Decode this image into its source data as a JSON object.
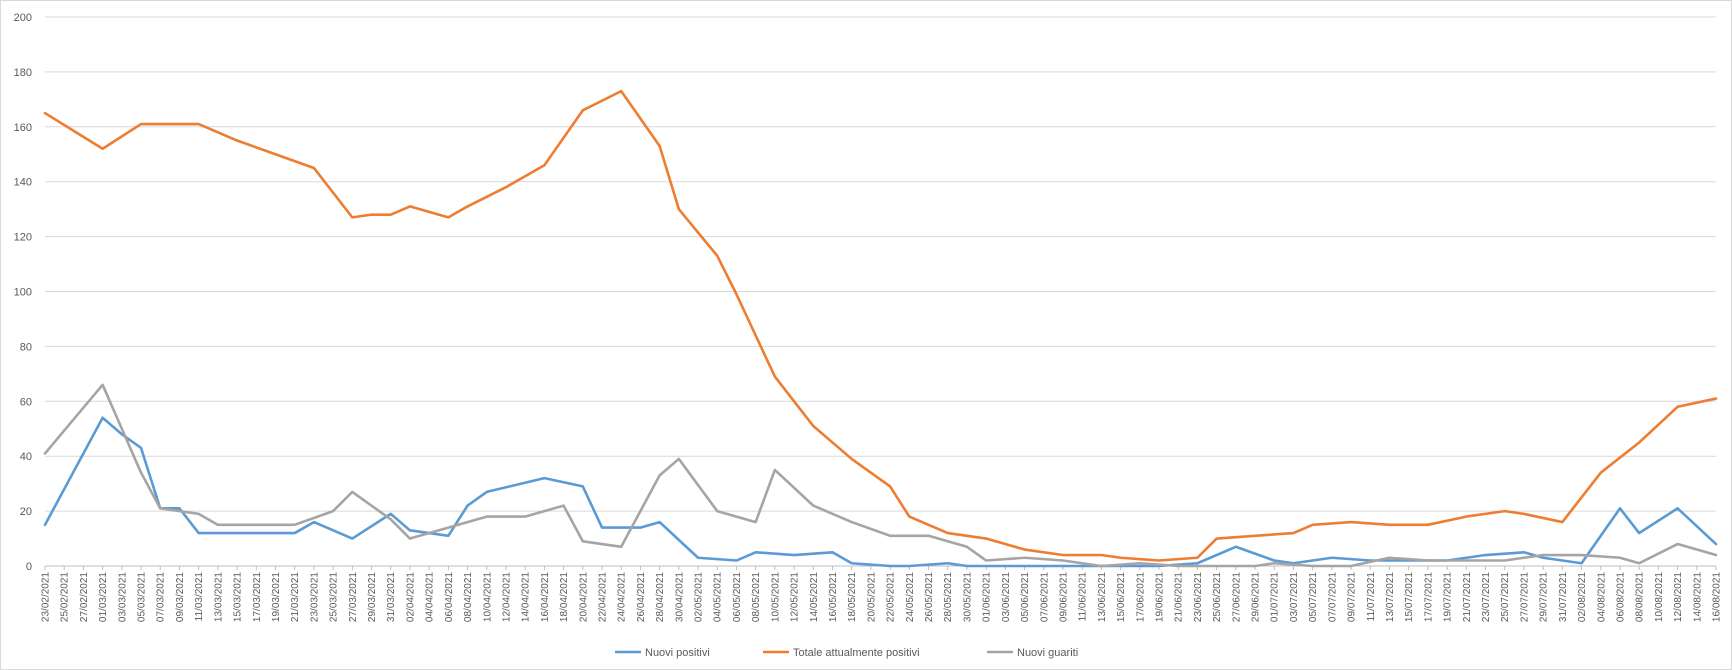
{
  "chart_data": {
    "type": "line",
    "title": "",
    "xlabel": "",
    "ylabel": "",
    "ylim": [
      0,
      200
    ],
    "yticks": [
      0,
      20,
      40,
      60,
      80,
      100,
      120,
      140,
      160,
      180,
      200
    ],
    "grid": true,
    "legend": "bottom",
    "x": [
      "23/02/2021",
      "25/02/2021",
      "27/02/2021",
      "01/03/2021",
      "03/03/2021",
      "05/03/2021",
      "07/03/2021",
      "09/03/2021",
      "11/03/2021",
      "13/03/2021",
      "15/03/2021",
      "17/03/2021",
      "19/03/2021",
      "21/03/2021",
      "23/03/2021",
      "25/03/2021",
      "27/03/2021",
      "29/03/2021",
      "31/03/2021",
      "02/04/2021",
      "04/04/2021",
      "06/04/2021",
      "08/04/2021",
      "10/04/2021",
      "12/04/2021",
      "14/04/2021",
      "16/04/2021",
      "18/04/2021",
      "20/04/2021",
      "22/04/2021",
      "24/04/2021",
      "26/04/2021",
      "28/04/2021",
      "30/04/2021",
      "02/05/2021",
      "04/05/2021",
      "06/05/2021",
      "08/05/2021",
      "10/05/2021",
      "12/05/2021",
      "14/05/2021",
      "16/05/2021",
      "18/05/2021",
      "20/05/2021",
      "22/05/2021",
      "24/05/2021",
      "26/05/2021",
      "28/05/2021",
      "30/05/2021",
      "01/06/2021",
      "03/06/2021",
      "05/06/2021",
      "07/06/2021",
      "09/06/2021",
      "11/06/2021",
      "13/06/2021",
      "15/06/2021",
      "17/06/2021",
      "19/06/2021",
      "21/06/2021",
      "23/06/2021",
      "25/06/2021",
      "27/06/2021",
      "29/06/2021",
      "01/07/2021",
      "03/07/2021",
      "05/07/2021",
      "07/07/2021",
      "09/07/2021",
      "11/07/2021",
      "13/07/2021",
      "15/07/2021",
      "17/07/2021",
      "19/07/2021",
      "21/07/2021",
      "23/07/2021",
      "25/07/2021",
      "27/07/2021",
      "29/07/2021",
      "31/07/2021",
      "02/08/2021",
      "04/08/2021",
      "06/08/2021",
      "08/08/2021",
      "10/08/2021",
      "12/08/2021",
      "14/08/2021",
      "16/08/2021"
    ],
    "series": [
      {
        "name": "Nuovi positivi",
        "color": "#5b9bd5",
        "points": [
          {
            "x": "23/02/2021",
            "y": 15
          },
          {
            "x": "01/03/2021",
            "y": 54
          },
          {
            "x": "03/03/2021",
            "y": 48
          },
          {
            "x": "05/03/2021",
            "y": 43
          },
          {
            "x": "07/03/2021",
            "y": 21
          },
          {
            "x": "09/03/2021",
            "y": 21
          },
          {
            "x": "11/03/2021",
            "y": 12
          },
          {
            "x": "13/03/2021",
            "y": 12
          },
          {
            "x": "15/03/2021",
            "y": 12
          },
          {
            "x": "21/03/2021",
            "y": 12
          },
          {
            "x": "23/03/2021",
            "y": 16
          },
          {
            "x": "27/03/2021",
            "y": 10
          },
          {
            "x": "31/03/2021",
            "y": 19
          },
          {
            "x": "02/04/2021",
            "y": 13
          },
          {
            "x": "06/04/2021",
            "y": 11
          },
          {
            "x": "08/04/2021",
            "y": 22
          },
          {
            "x": "10/04/2021",
            "y": 27
          },
          {
            "x": "16/04/2021",
            "y": 32
          },
          {
            "x": "20/04/2021",
            "y": 29
          },
          {
            "x": "22/04/2021",
            "y": 14
          },
          {
            "x": "26/04/2021",
            "y": 14
          },
          {
            "x": "28/04/2021",
            "y": 16
          },
          {
            "x": "02/05/2021",
            "y": 3
          },
          {
            "x": "06/05/2021",
            "y": 2
          },
          {
            "x": "08/05/2021",
            "y": 5
          },
          {
            "x": "12/05/2021",
            "y": 4
          },
          {
            "x": "16/05/2021",
            "y": 5
          },
          {
            "x": "18/05/2021",
            "y": 1
          },
          {
            "x": "22/05/2021",
            "y": 0
          },
          {
            "x": "24/05/2021",
            "y": 0
          },
          {
            "x": "28/05/2021",
            "y": 1
          },
          {
            "x": "30/05/2021",
            "y": 0
          },
          {
            "x": "05/06/2021",
            "y": 0
          },
          {
            "x": "09/06/2021",
            "y": 0
          },
          {
            "x": "11/06/2021",
            "y": 0
          },
          {
            "x": "15/06/2021",
            "y": 0
          },
          {
            "x": "19/06/2021",
            "y": 0
          },
          {
            "x": "23/06/2021",
            "y": 1
          },
          {
            "x": "27/06/2021",
            "y": 7
          },
          {
            "x": "01/07/2021",
            "y": 2
          },
          {
            "x": "03/07/2021",
            "y": 1
          },
          {
            "x": "07/07/2021",
            "y": 3
          },
          {
            "x": "11/07/2021",
            "y": 2
          },
          {
            "x": "15/07/2021",
            "y": 2
          },
          {
            "x": "17/07/2021",
            "y": 2
          },
          {
            "x": "19/07/2021",
            "y": 2
          },
          {
            "x": "23/07/2021",
            "y": 4
          },
          {
            "x": "27/07/2021",
            "y": 5
          },
          {
            "x": "29/07/2021",
            "y": 3
          },
          {
            "x": "02/08/2021",
            "y": 1
          },
          {
            "x": "06/08/2021",
            "y": 21
          },
          {
            "x": "08/08/2021",
            "y": 12
          },
          {
            "x": "12/08/2021",
            "y": 21
          },
          {
            "x": "16/08/2021",
            "y": 8
          }
        ]
      },
      {
        "name": "Totale attualmente positivi",
        "color": "#ed7d31",
        "points": [
          {
            "x": "23/02/2021",
            "y": 165
          },
          {
            "x": "01/03/2021",
            "y": 152
          },
          {
            "x": "05/03/2021",
            "y": 161
          },
          {
            "x": "09/03/2021",
            "y": 161
          },
          {
            "x": "11/03/2021",
            "y": 161
          },
          {
            "x": "13/03/2021",
            "y": 158
          },
          {
            "x": "15/03/2021",
            "y": 155
          },
          {
            "x": "19/03/2021",
            "y": 150
          },
          {
            "x": "23/03/2021",
            "y": 145
          },
          {
            "x": "27/03/2021",
            "y": 127
          },
          {
            "x": "29/03/2021",
            "y": 128
          },
          {
            "x": "31/03/2021",
            "y": 128
          },
          {
            "x": "02/04/2021",
            "y": 131
          },
          {
            "x": "06/04/2021",
            "y": 127
          },
          {
            "x": "08/04/2021",
            "y": 131
          },
          {
            "x": "12/04/2021",
            "y": 138
          },
          {
            "x": "16/04/2021",
            "y": 146
          },
          {
            "x": "20/04/2021",
            "y": 166
          },
          {
            "x": "24/04/2021",
            "y": 173
          },
          {
            "x": "28/04/2021",
            "y": 153
          },
          {
            "x": "30/04/2021",
            "y": 130
          },
          {
            "x": "04/05/2021",
            "y": 113
          },
          {
            "x": "06/05/2021",
            "y": 99
          },
          {
            "x": "10/05/2021",
            "y": 69
          },
          {
            "x": "12/05/2021",
            "y": 60
          },
          {
            "x": "14/05/2021",
            "y": 51
          },
          {
            "x": "18/05/2021",
            "y": 39
          },
          {
            "x": "22/05/2021",
            "y": 29
          },
          {
            "x": "24/05/2021",
            "y": 18
          },
          {
            "x": "28/05/2021",
            "y": 12
          },
          {
            "x": "01/06/2021",
            "y": 10
          },
          {
            "x": "05/06/2021",
            "y": 6
          },
          {
            "x": "09/06/2021",
            "y": 4
          },
          {
            "x": "13/06/2021",
            "y": 4
          },
          {
            "x": "15/06/2021",
            "y": 3
          },
          {
            "x": "19/06/2021",
            "y": 2
          },
          {
            "x": "23/06/2021",
            "y": 3
          },
          {
            "x": "25/06/2021",
            "y": 10
          },
          {
            "x": "29/06/2021",
            "y": 11
          },
          {
            "x": "03/07/2021",
            "y": 12
          },
          {
            "x": "05/07/2021",
            "y": 15
          },
          {
            "x": "09/07/2021",
            "y": 16
          },
          {
            "x": "13/07/2021",
            "y": 15
          },
          {
            "x": "17/07/2021",
            "y": 15
          },
          {
            "x": "21/07/2021",
            "y": 18
          },
          {
            "x": "25/07/2021",
            "y": 20
          },
          {
            "x": "27/07/2021",
            "y": 19
          },
          {
            "x": "31/07/2021",
            "y": 16
          },
          {
            "x": "04/08/2021",
            "y": 34
          },
          {
            "x": "08/08/2021",
            "y": 45
          },
          {
            "x": "12/08/2021",
            "y": 58
          },
          {
            "x": "16/08/2021",
            "y": 61
          }
        ]
      },
      {
        "name": "Nuovi guariti",
        "color": "#a5a5a5",
        "points": [
          {
            "x": "23/02/2021",
            "y": 41
          },
          {
            "x": "01/03/2021",
            "y": 66
          },
          {
            "x": "03/03/2021",
            "y": 50
          },
          {
            "x": "05/03/2021",
            "y": 34
          },
          {
            "x": "07/03/2021",
            "y": 21
          },
          {
            "x": "11/03/2021",
            "y": 19
          },
          {
            "x": "13/03/2021",
            "y": 15
          },
          {
            "x": "21/03/2021",
            "y": 15
          },
          {
            "x": "25/03/2021",
            "y": 20
          },
          {
            "x": "27/03/2021",
            "y": 27
          },
          {
            "x": "31/03/2021",
            "y": 17
          },
          {
            "x": "02/04/2021",
            "y": 10
          },
          {
            "x": "06/04/2021",
            "y": 14
          },
          {
            "x": "10/04/2021",
            "y": 18
          },
          {
            "x": "14/04/2021",
            "y": 18
          },
          {
            "x": "18/04/2021",
            "y": 22
          },
          {
            "x": "20/04/2021",
            "y": 9
          },
          {
            "x": "24/04/2021",
            "y": 7
          },
          {
            "x": "28/04/2021",
            "y": 33
          },
          {
            "x": "30/04/2021",
            "y": 39
          },
          {
            "x": "04/05/2021",
            "y": 20
          },
          {
            "x": "08/05/2021",
            "y": 16
          },
          {
            "x": "10/05/2021",
            "y": 35
          },
          {
            "x": "14/05/2021",
            "y": 22
          },
          {
            "x": "18/05/2021",
            "y": 16
          },
          {
            "x": "22/05/2021",
            "y": 11
          },
          {
            "x": "26/05/2021",
            "y": 11
          },
          {
            "x": "30/05/2021",
            "y": 7
          },
          {
            "x": "01/06/2021",
            "y": 2
          },
          {
            "x": "05/06/2021",
            "y": 3
          },
          {
            "x": "09/06/2021",
            "y": 2
          },
          {
            "x": "13/06/2021",
            "y": 0
          },
          {
            "x": "17/06/2021",
            "y": 1
          },
          {
            "x": "21/06/2021",
            "y": 0
          },
          {
            "x": "25/06/2021",
            "y": 0
          },
          {
            "x": "29/06/2021",
            "y": 0
          },
          {
            "x": "01/07/2021",
            "y": 1
          },
          {
            "x": "05/07/2021",
            "y": 0
          },
          {
            "x": "09/07/2021",
            "y": 0
          },
          {
            "x": "13/07/2021",
            "y": 3
          },
          {
            "x": "17/07/2021",
            "y": 2
          },
          {
            "x": "21/07/2021",
            "y": 2
          },
          {
            "x": "25/07/2021",
            "y": 2
          },
          {
            "x": "29/07/2021",
            "y": 4
          },
          {
            "x": "02/08/2021",
            "y": 4
          },
          {
            "x": "06/08/2021",
            "y": 3
          },
          {
            "x": "08/08/2021",
            "y": 1
          },
          {
            "x": "12/08/2021",
            "y": 8
          },
          {
            "x": "16/08/2021",
            "y": 4
          }
        ]
      }
    ]
  }
}
